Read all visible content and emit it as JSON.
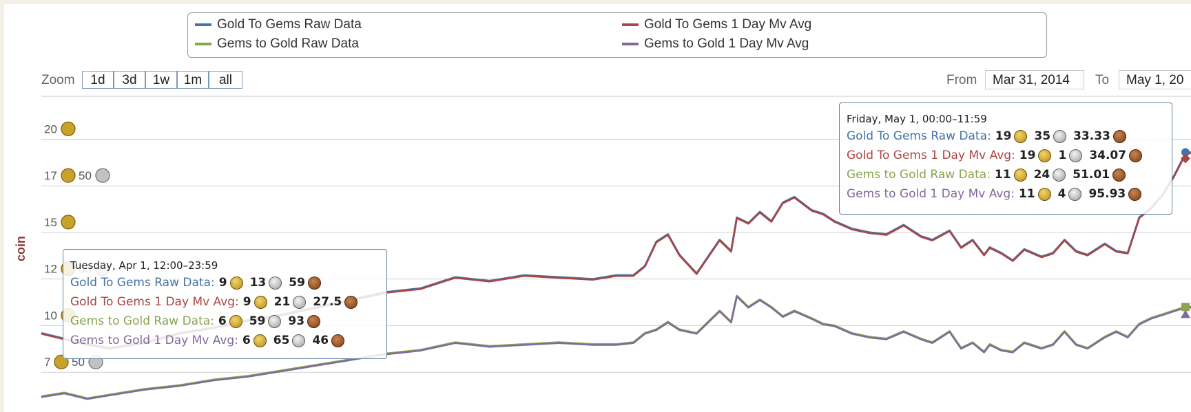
{
  "legend": {
    "items": [
      {
        "label": "Gold To Gems Raw Data",
        "color": "#4572a7"
      },
      {
        "label": "Gold To Gems 1 Day Mv Avg",
        "color": "#aa4643"
      },
      {
        "label": "Gems to Gold Raw Data",
        "color": "#89a54e"
      },
      {
        "label": "Gems to Gold 1 Day Mv Avg",
        "color": "#80699b"
      }
    ]
  },
  "range_selector": {
    "zoom_label": "Zoom",
    "buttons": [
      "1d",
      "3d",
      "1w",
      "1m",
      "all"
    ],
    "from_label": "From",
    "from_value": "Mar 31, 2014",
    "to_label": "To",
    "to_value": "May 1, 20"
  },
  "chart_data": {
    "type": "line",
    "ylabel": "coin",
    "ylim": [
      5.7,
      22.3
    ],
    "grid": true,
    "legend_position": "top",
    "y_ticks": [
      {
        "value": 20,
        "label": "20",
        "coins": [
          "gold"
        ]
      },
      {
        "value": 17.5,
        "label": "17",
        "coins": [
          "gold",
          "50",
          "silver"
        ]
      },
      {
        "value": 15,
        "label": "15",
        "coins": [
          "gold"
        ]
      },
      {
        "value": 12.5,
        "label": "12",
        "coins": [
          "gold",
          "50",
          "silver"
        ]
      },
      {
        "value": 10,
        "label": "10",
        "coins": [
          "gold"
        ]
      },
      {
        "value": 7.5,
        "label": "7",
        "coins": [
          "gold",
          "50",
          "silver"
        ]
      }
    ],
    "x_range": [
      0,
      1
    ],
    "gold_to_gems": {
      "x": [
        0.0,
        0.02,
        0.04,
        0.06,
        0.09,
        0.12,
        0.15,
        0.18,
        0.21,
        0.24,
        0.27,
        0.3,
        0.33,
        0.36,
        0.39,
        0.42,
        0.45,
        0.48,
        0.5,
        0.515,
        0.525,
        0.535,
        0.545,
        0.555,
        0.57,
        0.59,
        0.6,
        0.605,
        0.615,
        0.625,
        0.635,
        0.645,
        0.655,
        0.67,
        0.68,
        0.69,
        0.705,
        0.72,
        0.735,
        0.75,
        0.765,
        0.775,
        0.79,
        0.8,
        0.81,
        0.82,
        0.825,
        0.835,
        0.845,
        0.855,
        0.87,
        0.88,
        0.89,
        0.9,
        0.91,
        0.925,
        0.935,
        0.945,
        0.955,
        0.965,
        0.975,
        0.985,
        0.995,
        1.0
      ],
      "y": [
        9.6,
        9.3,
        9.0,
        8.8,
        9.1,
        9.6,
        9.9,
        10.3,
        10.6,
        11.0,
        11.4,
        11.8,
        12.0,
        12.6,
        12.4,
        12.7,
        12.6,
        12.5,
        12.7,
        12.7,
        13.2,
        14.5,
        14.9,
        13.8,
        12.8,
        14.6,
        14.0,
        15.8,
        15.5,
        16.1,
        15.6,
        16.6,
        16.9,
        16.2,
        16.0,
        15.6,
        15.2,
        15.0,
        14.9,
        15.4,
        14.8,
        14.6,
        15.1,
        14.2,
        14.6,
        13.8,
        14.2,
        13.9,
        13.5,
        14.1,
        13.7,
        13.9,
        14.6,
        14.0,
        13.8,
        14.4,
        14.0,
        13.9,
        15.8,
        16.3,
        17.0,
        18.0,
        19.2,
        19.3
      ]
    },
    "gems_to_gold": {
      "x": [
        0.0,
        0.02,
        0.04,
        0.06,
        0.09,
        0.12,
        0.15,
        0.18,
        0.21,
        0.24,
        0.27,
        0.3,
        0.33,
        0.36,
        0.39,
        0.42,
        0.45,
        0.48,
        0.5,
        0.515,
        0.525,
        0.535,
        0.545,
        0.555,
        0.57,
        0.59,
        0.6,
        0.605,
        0.615,
        0.625,
        0.635,
        0.645,
        0.655,
        0.67,
        0.68,
        0.69,
        0.705,
        0.72,
        0.735,
        0.75,
        0.765,
        0.775,
        0.79,
        0.8,
        0.81,
        0.82,
        0.825,
        0.835,
        0.845,
        0.855,
        0.87,
        0.88,
        0.89,
        0.9,
        0.91,
        0.925,
        0.935,
        0.945,
        0.955,
        0.965,
        0.975,
        0.985,
        0.995,
        1.0
      ],
      "y": [
        6.2,
        6.4,
        6.1,
        6.3,
        6.6,
        6.8,
        7.1,
        7.3,
        7.6,
        7.9,
        8.2,
        8.5,
        8.7,
        9.1,
        8.9,
        9.0,
        9.1,
        9.0,
        9.0,
        9.1,
        9.6,
        9.8,
        10.2,
        9.8,
        9.6,
        10.8,
        10.2,
        11.6,
        11.0,
        11.4,
        11.0,
        10.5,
        10.8,
        10.4,
        10.1,
        10.0,
        9.6,
        9.4,
        9.3,
        9.7,
        9.3,
        9.1,
        9.7,
        8.8,
        9.1,
        8.6,
        9.0,
        8.7,
        8.6,
        9.1,
        8.8,
        9.0,
        9.7,
        9.0,
        8.8,
        9.4,
        9.7,
        9.4,
        10.1,
        10.4,
        10.6,
        10.8,
        11.0,
        11.0
      ]
    }
  },
  "tooltips": [
    {
      "header": "Tuesday, Apr 1, 12:00–23:59",
      "rows": [
        {
          "label": "Gold To Gems Raw Data:",
          "color": "#4572a7",
          "gold": "9",
          "silver": "13",
          "copper": "59"
        },
        {
          "label": "Gold To Gems 1 Day Mv Avg:",
          "color": "#aa4643",
          "gold": "9",
          "silver": "21",
          "copper": "27.5"
        },
        {
          "label": "Gems to Gold Raw Data:",
          "color": "#89a54e",
          "gold": "6",
          "silver": "59",
          "copper": "93"
        },
        {
          "label": "Gems to Gold 1 Day Mv Avg:",
          "color": "#80699b",
          "gold": "6",
          "silver": "65",
          "copper": "46"
        }
      ]
    },
    {
      "header": "Friday, May 1, 00:00–11:59",
      "rows": [
        {
          "label": "Gold To Gems Raw Data:",
          "color": "#4572a7",
          "gold": "19",
          "silver": "35",
          "copper": "33.33"
        },
        {
          "label": "Gold To Gems 1 Day Mv Avg:",
          "color": "#aa4643",
          "gold": "19",
          "silver": "1",
          "copper": "34.07"
        },
        {
          "label": "Gems to Gold Raw Data:",
          "color": "#89a54e",
          "gold": "11",
          "silver": "24",
          "copper": "51.01"
        },
        {
          "label": "Gems to Gold 1 Day Mv Avg:",
          "color": "#80699b",
          "gold": "11",
          "silver": "4",
          "copper": "95.93"
        }
      ]
    }
  ]
}
